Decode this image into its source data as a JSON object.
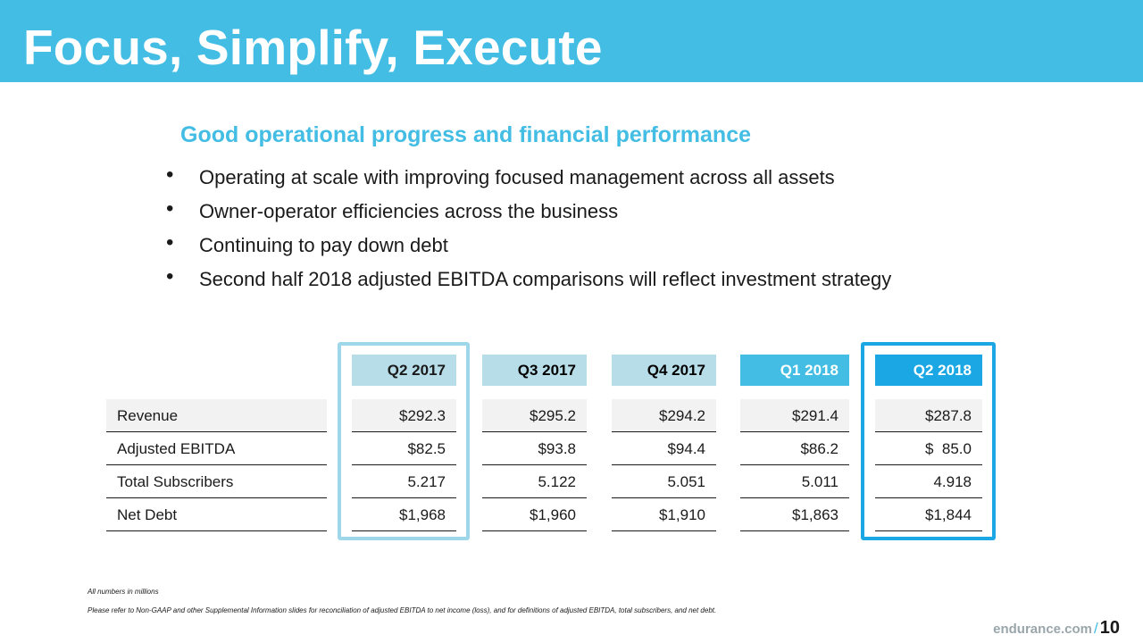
{
  "slide": {
    "title": "Focus, Simplify, Execute",
    "subtitle": "Good operational progress and financial performance",
    "bullets": [
      "Operating at scale with improving focused management across all assets",
      "Owner-operator efficiencies across the business",
      "Continuing to pay down debt",
      "Second half 2018 adjusted EBITDA comparisons will reflect investment strategy"
    ],
    "bullet_glyph": "•"
  },
  "table": {
    "columns": [
      {
        "label": "Q2 2017",
        "bg": "#b7dde9",
        "color": "#1a1a1a"
      },
      {
        "label": "Q3 2017",
        "bg": "#b7dde9",
        "color": "#000000"
      },
      {
        "label": "Q4 2017",
        "bg": "#b7dde9",
        "color": "#000000"
      },
      {
        "label": "Q1 2018",
        "bg": "#43bde3",
        "color": "#ffffff"
      },
      {
        "label": "Q2 2018",
        "bg": "#1aa7e4",
        "color": "#ffffff"
      }
    ],
    "rows": [
      {
        "label": "Revenue",
        "values": [
          "$292.3",
          "$295.2",
          "$294.2",
          "$291.4",
          "$287.8"
        ]
      },
      {
        "label": "Adjusted EBITDA",
        "values": [
          "$82.5",
          "$93.8",
          "$94.4",
          "$86.2",
          "$  85.0"
        ]
      },
      {
        "label": "Total Subscribers",
        "values": [
          "5.217",
          "5.122",
          "5.051",
          "5.011",
          "4.918"
        ]
      },
      {
        "label": "Net Debt",
        "values": [
          "$1,968",
          "$1,960",
          "$1,910",
          "$1,863",
          "$1,844"
        ]
      }
    ]
  },
  "footnotes": [
    "All numbers in millions",
    "Please refer to Non-GAAP and other Supplemental Information slides for reconciliation of adjusted EBITDA to net income (loss), and for definitions of adjusted EBITDA, total subscribers, and net debt."
  ],
  "footer": {
    "url": "endurance.com",
    "separator": "/",
    "page": "10"
  },
  "colors": {
    "brand_blue": "#43bde3",
    "accent_blue": "#1aa7e4",
    "light_blue": "#b7dde9"
  }
}
